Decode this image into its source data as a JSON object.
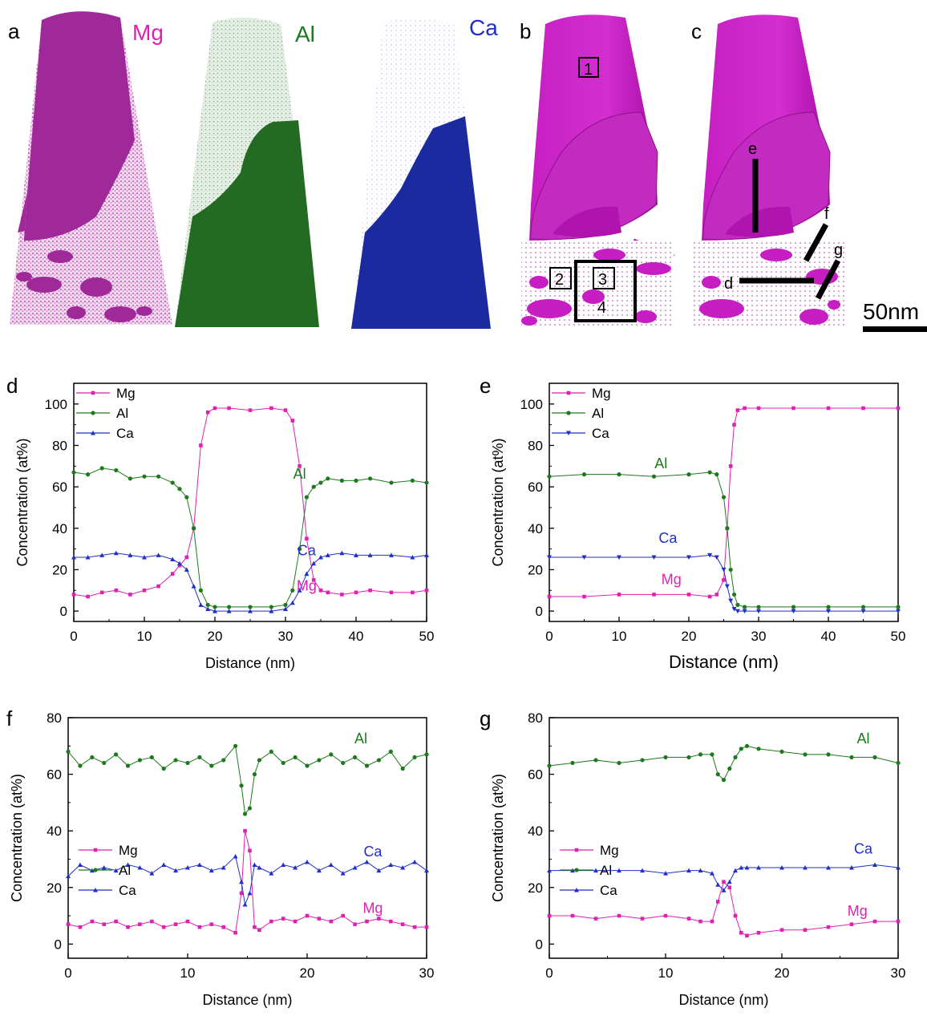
{
  "top_panels": {
    "a": {
      "letter": "a",
      "labels": [
        "Mg",
        "Al",
        "Ca"
      ]
    },
    "b": {
      "letter": "b",
      "boxes": [
        "1",
        "2",
        "3",
        "4"
      ]
    },
    "c": {
      "letter": "c",
      "lines": [
        "e",
        "f",
        "g",
        "d"
      ]
    },
    "scale_bar": "50nm"
  },
  "colors": {
    "Mg": "#e020b0",
    "Al": "#1c7a1c",
    "Ca": "#1f2fc8",
    "reconstruction_Mg": "#9c1f8c",
    "iso_Mg": "#c81ec8",
    "Al_volume": "#236b23",
    "Ca_volume": "#1c2aa0"
  },
  "chart_data": [
    {
      "panel": "d",
      "type": "line",
      "xlabel": "Distance (nm)",
      "ylabel": "Concentration (at%)",
      "xlim": [
        0,
        50
      ],
      "ylim": [
        -5,
        110
      ],
      "xticks": [
        "0",
        "10",
        "20",
        "30",
        "40",
        "50"
      ],
      "yticks": [
        "0",
        "20",
        "40",
        "60",
        "80",
        "100"
      ],
      "legend": {
        "position": "top-left",
        "entries": [
          "Mg",
          "Al",
          "Ca"
        ]
      },
      "annotations": [
        "Al",
        "Ca",
        "Mg"
      ],
      "x": [
        0,
        2,
        4,
        6,
        8,
        10,
        12,
        14,
        15,
        16,
        17,
        18,
        19,
        20,
        22,
        25,
        28,
        30,
        31,
        32,
        33,
        34,
        35,
        36,
        38,
        40,
        42,
        45,
        48,
        50
      ],
      "series": [
        {
          "name": "Mg",
          "values": [
            8,
            7,
            9,
            10,
            8,
            10,
            12,
            18,
            22,
            26,
            40,
            80,
            96,
            98,
            98,
            97,
            98,
            97,
            92,
            70,
            35,
            15,
            10,
            9,
            8,
            9,
            10,
            9,
            9,
            10
          ]
        },
        {
          "name": "Al",
          "values": [
            67,
            66,
            69,
            68,
            64,
            65,
            65,
            62,
            59,
            55,
            40,
            10,
            3,
            2,
            2,
            2,
            2,
            3,
            10,
            30,
            55,
            60,
            62,
            64,
            63,
            63,
            64,
            62,
            63,
            62
          ]
        },
        {
          "name": "Ca",
          "values": [
            26,
            26,
            27,
            28,
            27,
            26,
            27,
            25,
            23,
            20,
            12,
            3,
            1,
            0,
            0,
            0,
            0,
            1,
            4,
            10,
            18,
            23,
            26,
            27,
            28,
            27,
            27,
            27,
            26,
            27
          ]
        }
      ]
    },
    {
      "panel": "e",
      "type": "line",
      "xlabel": "Distance (nm)",
      "ylabel": "Concentration (at%)",
      "xlim": [
        0,
        50
      ],
      "ylim": [
        -5,
        110
      ],
      "xticks": [
        "0",
        "10",
        "20",
        "30",
        "40",
        "50"
      ],
      "yticks": [
        "0",
        "20",
        "40",
        "60",
        "80",
        "100"
      ],
      "legend": {
        "position": "top-left",
        "entries": [
          "Mg",
          "Al",
          "Ca"
        ]
      },
      "annotations": [
        "Al",
        "Ca",
        "Mg"
      ],
      "x": [
        0,
        5,
        10,
        15,
        20,
        23,
        24,
        25,
        25.5,
        26,
        26.5,
        27,
        28,
        30,
        35,
        40,
        45,
        50
      ],
      "series": [
        {
          "name": "Mg",
          "values": [
            7,
            7,
            8,
            8,
            8,
            7,
            8,
            15,
            40,
            70,
            90,
            97,
            98,
            98,
            98,
            98,
            98,
            98
          ]
        },
        {
          "name": "Al",
          "values": [
            65,
            66,
            66,
            65,
            66,
            67,
            66,
            55,
            40,
            20,
            8,
            3,
            2,
            2,
            2,
            2,
            2,
            2
          ]
        },
        {
          "name": "Ca",
          "values": [
            26,
            26,
            26,
            26,
            26,
            27,
            26,
            20,
            12,
            5,
            1,
            0,
            0,
            0,
            0,
            0,
            0,
            0
          ]
        }
      ]
    },
    {
      "panel": "f",
      "type": "line",
      "xlabel": "Distance (nm)",
      "ylabel": "Concentration (at%)",
      "xlim": [
        0,
        30
      ],
      "ylim": [
        -5,
        80
      ],
      "xticks": [
        "0",
        "10",
        "20",
        "30"
      ],
      "yticks": [
        "0",
        "20",
        "40",
        "60",
        "80"
      ],
      "legend": {
        "position": "center-left",
        "entries": [
          "Mg",
          "Al",
          "Ca"
        ]
      },
      "annotations": [
        "Al",
        "Ca",
        "Mg"
      ],
      "x": [
        0,
        1,
        2,
        3,
        4,
        5,
        6,
        7,
        8,
        9,
        10,
        11,
        12,
        13,
        14,
        14.5,
        14.8,
        15.2,
        15.6,
        16,
        17,
        18,
        19,
        20,
        21,
        22,
        23,
        24,
        25,
        26,
        27,
        28,
        29,
        30
      ],
      "series": [
        {
          "name": "Mg",
          "values": [
            7,
            6,
            8,
            7,
            8,
            6,
            7,
            8,
            6,
            7,
            8,
            6,
            7,
            6,
            4,
            18,
            40,
            33,
            6,
            5,
            8,
            9,
            8,
            10,
            9,
            8,
            10,
            7,
            8,
            9,
            8,
            7,
            6,
            6
          ]
        },
        {
          "name": "Al",
          "values": [
            68,
            63,
            66,
            64,
            67,
            63,
            65,
            66,
            62,
            65,
            64,
            66,
            63,
            65,
            70,
            56,
            46,
            48,
            60,
            65,
            68,
            64,
            66,
            63,
            65,
            67,
            64,
            66,
            63,
            65,
            68,
            62,
            66,
            67
          ]
        },
        {
          "name": "Ca",
          "values": [
            24,
            28,
            26,
            27,
            26,
            28,
            27,
            25,
            28,
            26,
            27,
            28,
            26,
            27,
            31,
            22,
            14,
            18,
            28,
            27,
            25,
            28,
            27,
            29,
            26,
            28,
            25,
            27,
            29,
            26,
            28,
            27,
            29,
            26
          ]
        }
      ]
    },
    {
      "panel": "g",
      "type": "line",
      "xlabel": "Distance (nm)",
      "ylabel": "Concentration (at%)",
      "xlim": [
        0,
        30
      ],
      "ylim": [
        -5,
        80
      ],
      "xticks": [
        "0",
        "10",
        "20",
        "30"
      ],
      "yticks": [
        "0",
        "20",
        "40",
        "60",
        "80"
      ],
      "legend": {
        "position": "center-left",
        "entries": [
          "Mg",
          "Al",
          "Ca"
        ]
      },
      "annotations": [
        "Al",
        "Ca",
        "Mg"
      ],
      "x": [
        0,
        2,
        4,
        6,
        8,
        10,
        12,
        13,
        14,
        14.5,
        15,
        15.5,
        16,
        16.5,
        17,
        18,
        20,
        22,
        24,
        26,
        28,
        30
      ],
      "series": [
        {
          "name": "Mg",
          "values": [
            10,
            10,
            9,
            10,
            9,
            10,
            9,
            8,
            8,
            15,
            22,
            20,
            10,
            4,
            3,
            4,
            5,
            5,
            6,
            7,
            8,
            8
          ]
        },
        {
          "name": "Al",
          "values": [
            63,
            64,
            65,
            64,
            65,
            66,
            66,
            67,
            67,
            60,
            58,
            62,
            66,
            69,
            70,
            69,
            68,
            67,
            67,
            66,
            66,
            64
          ]
        },
        {
          "name": "Ca",
          "values": [
            26,
            26,
            26,
            26,
            26,
            25,
            26,
            26,
            25,
            21,
            19,
            22,
            26,
            27,
            27,
            27,
            27,
            27,
            27,
            27,
            28,
            27
          ]
        }
      ]
    }
  ]
}
